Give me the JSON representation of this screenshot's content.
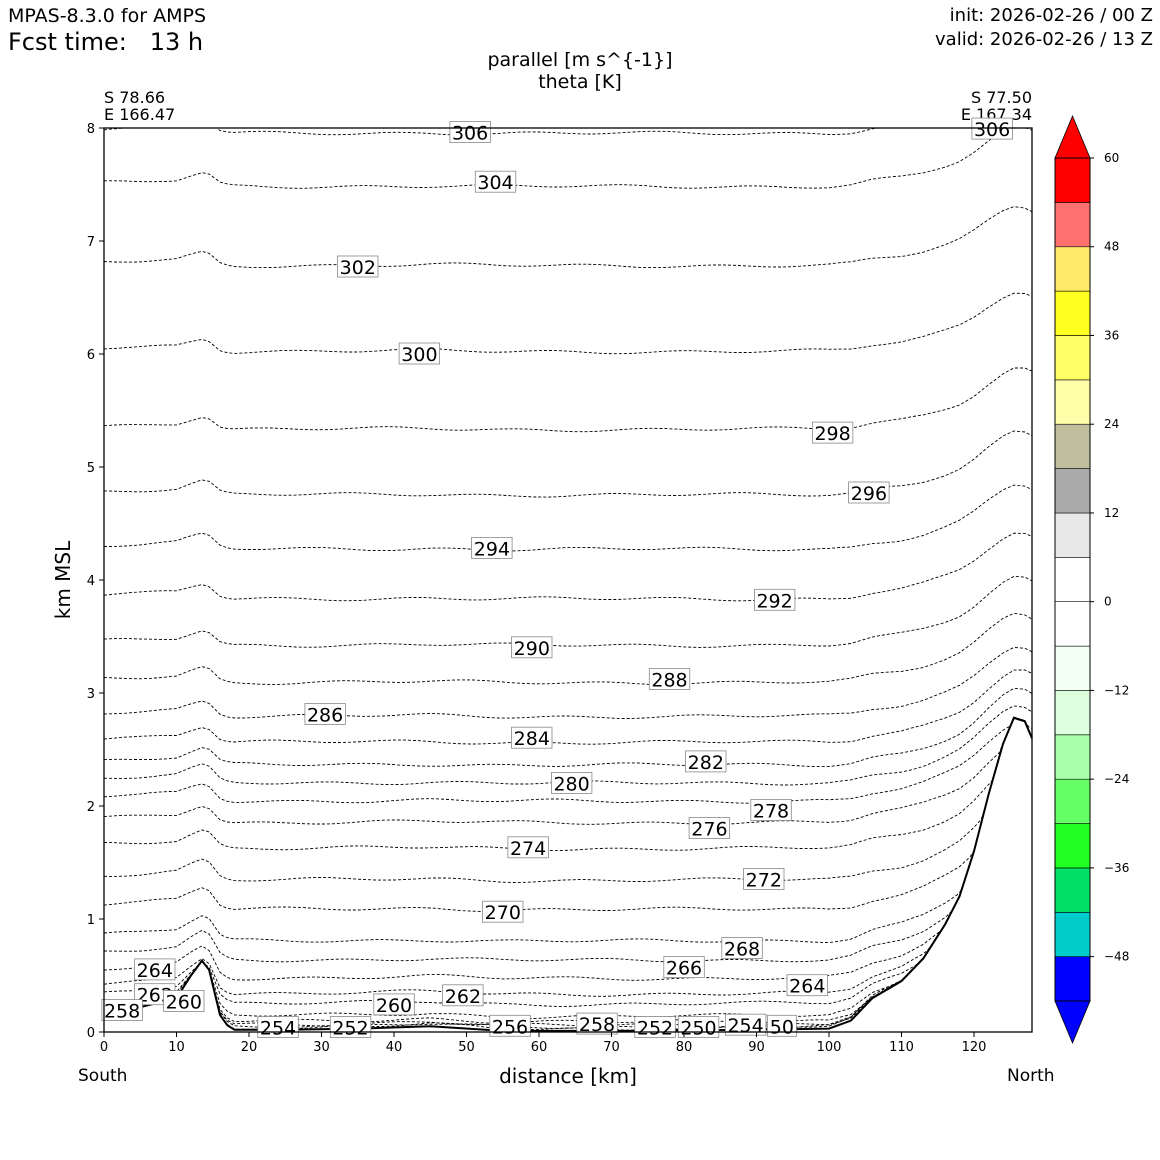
{
  "header": {
    "model": "MPAS-8.3.0 for AMPS",
    "fcst_label": "Fcst time:",
    "fcst_value": "13 h",
    "init": "init: 2026-02-26 / 00 Z",
    "valid": "valid: 2026-02-26 / 13 Z",
    "title_line1": "parallel [m s^{-1}]",
    "title_line2": "theta [K]"
  },
  "coords": {
    "left_lat": "S 78.66",
    "left_lon": "E 166.47",
    "right_lat": "S 77.50",
    "right_lon": "E 167.34"
  },
  "end_labels": {
    "left": "South",
    "right": "North"
  },
  "chart_data": {
    "type": "contour-cross-section",
    "xlabel": "distance [km]",
    "ylabel": "km MSL",
    "xlim": [
      0,
      128
    ],
    "ylim": [
      0,
      8
    ],
    "xticks": [
      "0",
      "10",
      "20",
      "30",
      "40",
      "50",
      "60",
      "70",
      "80",
      "90",
      "100",
      "110",
      "120"
    ],
    "yticks": [
      "0",
      "1",
      "2",
      "3",
      "4",
      "5",
      "6",
      "7",
      "8"
    ],
    "terrain": [
      [
        0,
        0.18
      ],
      [
        5,
        0.22
      ],
      [
        10,
        0.3
      ],
      [
        12,
        0.5
      ],
      [
        13.5,
        0.63
      ],
      [
        14.5,
        0.55
      ],
      [
        16,
        0.15
      ],
      [
        17,
        0.06
      ],
      [
        18,
        0.02
      ],
      [
        25,
        0.02
      ],
      [
        35,
        0.03
      ],
      [
        45,
        0.05
      ],
      [
        55,
        0.01
      ],
      [
        70,
        0.01
      ],
      [
        90,
        0.02
      ],
      [
        100,
        0.03
      ],
      [
        103,
        0.1
      ],
      [
        106,
        0.3
      ],
      [
        110,
        0.45
      ],
      [
        113,
        0.65
      ],
      [
        116,
        0.95
      ],
      [
        118,
        1.2
      ],
      [
        120,
        1.6
      ],
      [
        122,
        2.1
      ],
      [
        124,
        2.55
      ],
      [
        125.5,
        2.78
      ],
      [
        127,
        2.75
      ],
      [
        128,
        2.6
      ]
    ],
    "theta_contours": [
      {
        "level": 306,
        "z": 7.95
      },
      {
        "level": 304,
        "z": 7.48
      },
      {
        "level": 302,
        "z": 6.78
      },
      {
        "level": 300,
        "z": 6.02
      },
      {
        "level": 298,
        "z": 5.33
      },
      {
        "level": 296,
        "z": 4.75
      },
      {
        "level": 294,
        "z": 4.27
      },
      {
        "level": 292,
        "z": 3.83
      },
      {
        "level": 290,
        "z": 3.42
      },
      {
        "level": 288,
        "z": 3.09
      },
      {
        "level": 286,
        "z": 2.79
      },
      {
        "level": 284,
        "z": 2.56
      },
      {
        "level": 282,
        "z": 2.36
      },
      {
        "level": 280,
        "z": 2.2
      },
      {
        "level": 278,
        "z": 2.04
      },
      {
        "level": 276,
        "z": 1.85
      },
      {
        "level": 274,
        "z": 1.62
      },
      {
        "level": 272,
        "z": 1.34
      },
      {
        "level": 270,
        "z": 1.08
      },
      {
        "level": 268,
        "z": 0.8
      },
      {
        "level": 266,
        "z": 0.63
      },
      {
        "level": 264,
        "z": 0.47
      },
      {
        "level": 262,
        "z": 0.33
      },
      {
        "level": 260,
        "z": 0.24
      },
      {
        "level": 258,
        "z": 0.13
      },
      {
        "level": 256,
        "z": 0.08
      },
      {
        "level": 254,
        "z": 0.05
      },
      {
        "level": 252,
        "z": 0.03
      },
      {
        "level": 250,
        "z": 0.02
      }
    ],
    "contour_labels": [
      {
        "text": "306",
        "x": 50.5,
        "y": 7.96
      },
      {
        "text": "306",
        "x": 122.5,
        "y": 7.99
      },
      {
        "text": "304",
        "x": 54,
        "y": 7.52
      },
      {
        "text": "302",
        "x": 35,
        "y": 6.77
      },
      {
        "text": "300",
        "x": 43.5,
        "y": 6.0
      },
      {
        "text": "298",
        "x": 100.5,
        "y": 5.3
      },
      {
        "text": "296",
        "x": 105.5,
        "y": 4.77
      },
      {
        "text": "294",
        "x": 53.5,
        "y": 4.28
      },
      {
        "text": "292",
        "x": 92.5,
        "y": 3.82
      },
      {
        "text": "290",
        "x": 59,
        "y": 3.4
      },
      {
        "text": "288",
        "x": 78,
        "y": 3.12
      },
      {
        "text": "286",
        "x": 30.5,
        "y": 2.81
      },
      {
        "text": "284",
        "x": 59,
        "y": 2.6
      },
      {
        "text": "282",
        "x": 83,
        "y": 2.39
      },
      {
        "text": "280",
        "x": 64.5,
        "y": 2.2
      },
      {
        "text": "278",
        "x": 92,
        "y": 1.96
      },
      {
        "text": "276",
        "x": 83.5,
        "y": 1.8
      },
      {
        "text": "274",
        "x": 58.5,
        "y": 1.63
      },
      {
        "text": "272",
        "x": 91,
        "y": 1.35
      },
      {
        "text": "270",
        "x": 55,
        "y": 1.06
      },
      {
        "text": "268",
        "x": 88,
        "y": 0.74
      },
      {
        "text": "266",
        "x": 80,
        "y": 0.57
      },
      {
        "text": "264",
        "x": 7,
        "y": 0.55
      },
      {
        "text": "264",
        "x": 97,
        "y": 0.41
      },
      {
        "text": "262",
        "x": 7,
        "y": 0.33
      },
      {
        "text": "262",
        "x": 49.5,
        "y": 0.32
      },
      {
        "text": "260",
        "x": 11,
        "y": 0.27
      },
      {
        "text": "260",
        "x": 40,
        "y": 0.24
      },
      {
        "text": "258",
        "x": 2.5,
        "y": 0.19
      },
      {
        "text": "258",
        "x": 68,
        "y": 0.07
      },
      {
        "text": "256",
        "x": 56,
        "y": 0.05
      },
      {
        "text": "254",
        "x": 24,
        "y": 0.04
      },
      {
        "text": "254",
        "x": 88.5,
        "y": 0.06
      },
      {
        "text": "252",
        "x": 34,
        "y": 0.04
      },
      {
        "text": "252",
        "x": 76,
        "y": 0.04
      },
      {
        "text": "250",
        "x": 82,
        "y": 0.04
      },
      {
        "text": "50",
        "x": 93.5,
        "y": 0.05
      }
    ],
    "colorbar": {
      "variable": "parallel [m s^{-1}]",
      "levels": [
        "-54",
        "-48",
        "-42",
        "-36",
        "-30",
        "-24",
        "-18",
        "-12",
        "-6",
        "0",
        "6",
        "12",
        "18",
        "24",
        "30",
        "36",
        "42",
        "48",
        "54",
        "60"
      ],
      "tick_labels": [
        "60",
        "48",
        "36",
        "24",
        "12",
        "0",
        "−12",
        "−24",
        "−36",
        "−48"
      ],
      "tick_values": [
        60,
        48,
        36,
        24,
        12,
        0,
        -12,
        -24,
        -36,
        -48
      ],
      "colors": [
        "#0000ff",
        "#00cccc",
        "#00e066",
        "#22ff22",
        "#66ff66",
        "#aaffaa",
        "#ddffdd",
        "#f2fff2",
        "#ffffff",
        "#ffffff",
        "#e8e8e8",
        "#aaaaaa",
        "#bfbf9f",
        "#ffffaa",
        "#ffff66",
        "#ffff22",
        "#ffea6a",
        "#ff7070",
        "#ff0000"
      ],
      "extend_min_color": "#0000ff",
      "extend_max_color": "#ff0000"
    }
  }
}
